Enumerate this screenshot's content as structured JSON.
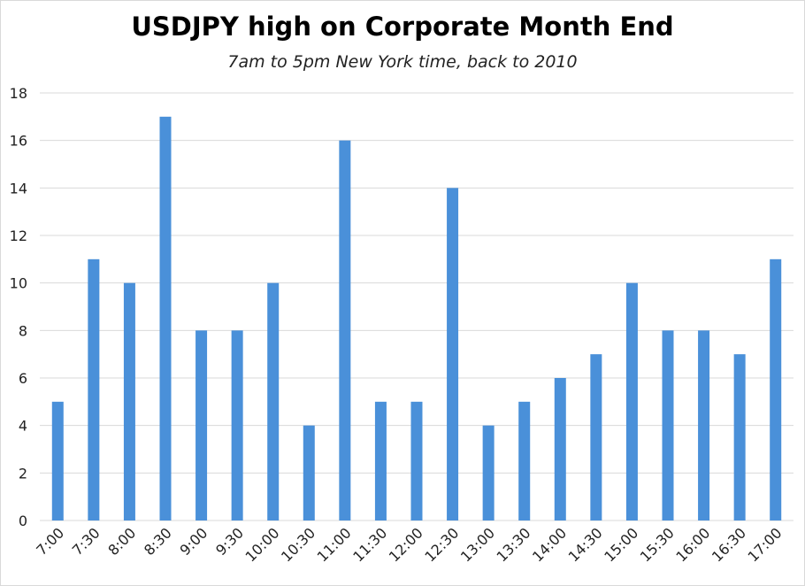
{
  "chart_data": {
    "type": "bar",
    "title": "USDJPY high on Corporate Month End",
    "subtitle": "7am to 5pm New York time, back to 2010",
    "categories": [
      "7:00",
      "7:30",
      "8:00",
      "8:30",
      "9:00",
      "9:30",
      "10:00",
      "10:30",
      "11:00",
      "11:30",
      "12:00",
      "12:30",
      "13:00",
      "13:30",
      "14:00",
      "14:30",
      "15:00",
      "15:30",
      "16:00",
      "16:30",
      "17:00"
    ],
    "values": [
      5,
      11,
      10,
      17,
      8,
      8,
      10,
      4,
      16,
      5,
      5,
      14,
      4,
      5,
      6,
      7,
      10,
      8,
      8,
      7,
      11
    ],
    "xlabel": "",
    "ylabel": "",
    "ylim": [
      0,
      18
    ],
    "yticks": [
      0,
      2,
      4,
      6,
      8,
      10,
      12,
      14,
      16,
      18
    ],
    "grid": true,
    "legend": "none",
    "bar_color": "#4a90d9",
    "grid_color": "#d9d9d9"
  }
}
